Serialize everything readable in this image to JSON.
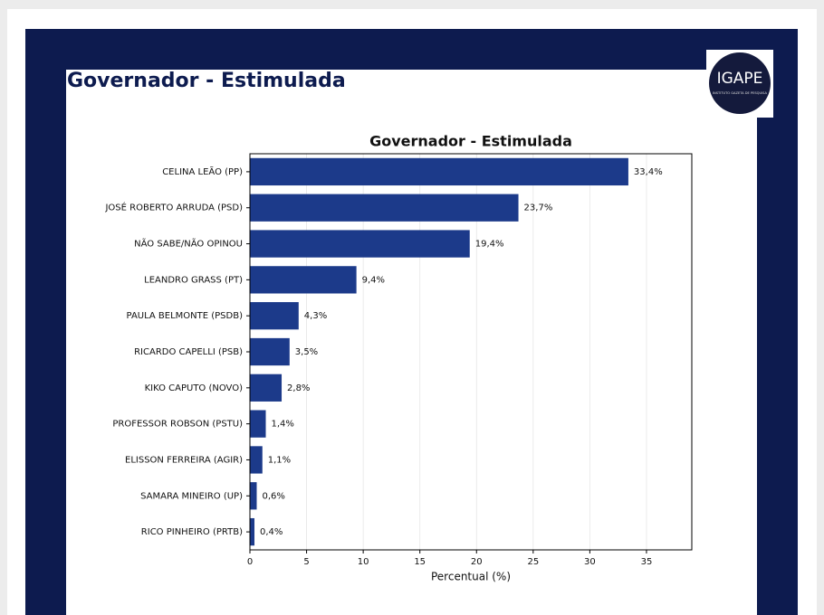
{
  "header": {
    "title": "Governador - Estimulada"
  },
  "logo": {
    "text": "IGAPE",
    "subtitle": "INSTITUTO GAZETA DE PESQUISA"
  },
  "chart_data": {
    "type": "barh",
    "title": "Governador - Estimulada",
    "categories": [
      "CELINA LEÃO (PP)",
      "JOSÉ ROBERTO ARRUDA (PSD)",
      "NÃO SABE/NÃO OPINOU",
      "LEANDRO GRASS (PT)",
      "PAULA BELMONTE (PSDB)",
      "RICARDO CAPELLI (PSB)",
      "KIKO CAPUTO (NOVO)",
      "PROFESSOR ROBSON (PSTU)",
      "ELISSON FERREIRA (AGIR)",
      "SAMARA MINEIRO (UP)",
      "RICO PINHEIRO (PRTB)"
    ],
    "values": [
      33.4,
      23.7,
      19.4,
      9.4,
      4.3,
      3.5,
      2.8,
      1.4,
      1.1,
      0.6,
      0.4
    ],
    "value_labels": [
      "33,4%",
      "23,7%",
      "19,4%",
      "9,4%",
      "4,3%",
      "3,5%",
      "2,8%",
      "1,4%",
      "1,1%",
      "0,6%",
      "0,4%"
    ],
    "color": "#1c3a8a",
    "xlabel": "Percentual (%)",
    "xlim": [
      0,
      39
    ],
    "xticks": [
      0,
      5,
      10,
      15,
      20,
      25,
      30,
      35
    ],
    "grid": true
  }
}
